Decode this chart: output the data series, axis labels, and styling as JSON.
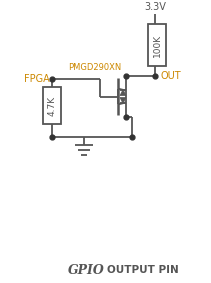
{
  "title_gpio": "GPIO",
  "title_rest": " OUTPUT PIN",
  "label_fpga": "FPGA",
  "label_pmgd": "PMGD290XN",
  "label_out": "OUT",
  "label_vcc": "3.3V",
  "label_r1": "100K",
  "label_r2": "4.7K",
  "color_label_orange": "#CC8800",
  "color_line": "#555555",
  "color_bg": "#FFFFFF",
  "color_dot": "#333333",
  "color_title": "#555555"
}
